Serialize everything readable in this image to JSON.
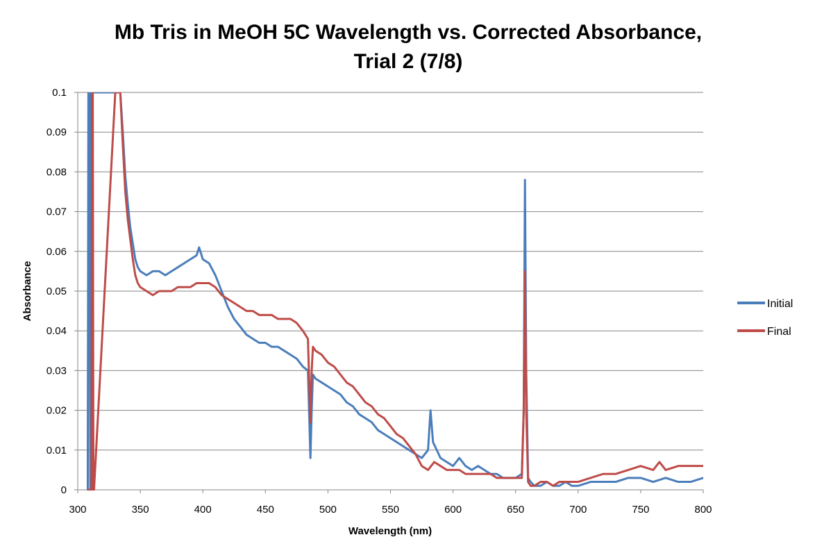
{
  "chart_data": {
    "type": "line",
    "title_lines": [
      "Mb Tris in MeOH 5C Wavelength vs. Corrected Absorbance,",
      "Trial 2 (7/8)"
    ],
    "xlabel": "Wavelength (nm)",
    "ylabel": "Absorbance",
    "xlim": [
      300,
      800
    ],
    "ylim": [
      0,
      0.1
    ],
    "x_ticks": [
      300,
      350,
      400,
      450,
      500,
      550,
      600,
      650,
      700,
      750,
      800
    ],
    "x_tick_labels": [
      "300",
      "350",
      "400",
      "450",
      "500",
      "550",
      "600",
      "650",
      "700",
      "750",
      "800"
    ],
    "y_ticks": [
      0,
      0.01,
      0.02,
      0.03,
      0.04,
      0.05,
      0.06,
      0.07,
      0.08,
      0.09,
      0.1
    ],
    "y_tick_labels": [
      "0",
      "0.01",
      "0.02",
      "0.03",
      "0.04",
      "0.05",
      "0.06",
      "0.07",
      "0.08",
      "0.09",
      "0.1"
    ],
    "grid": true,
    "legend_position": "right",
    "series": [
      {
        "name": "Initial",
        "color": "#4a7ebb",
        "x": [
          308,
          308.5,
          309,
          309.5,
          310,
          310.5,
          311,
          311.5,
          312,
          312.5,
          313,
          330,
          334,
          336,
          338,
          340,
          342,
          344,
          346,
          348,
          350,
          355,
          360,
          365,
          370,
          375,
          380,
          385,
          390,
          395,
          397,
          400,
          405,
          410,
          415,
          420,
          425,
          430,
          435,
          440,
          445,
          450,
          455,
          460,
          465,
          470,
          475,
          480,
          484,
          486,
          487,
          488,
          490,
          495,
          500,
          505,
          510,
          515,
          520,
          525,
          530,
          535,
          540,
          545,
          550,
          555,
          560,
          565,
          570,
          575,
          580,
          582,
          584,
          590,
          595,
          600,
          605,
          610,
          615,
          620,
          625,
          630,
          635,
          640,
          645,
          650,
          655,
          656.5,
          657.5,
          658.5,
          660,
          662,
          665,
          670,
          675,
          680,
          685,
          690,
          695,
          700,
          710,
          720,
          730,
          740,
          750,
          760,
          770,
          780,
          790,
          800
        ],
        "y": [
          0,
          0.1,
          0.1,
          0.1,
          0,
          0,
          0.1,
          0.1,
          0.1,
          0.1,
          0.1,
          0.1,
          0.1,
          0.09,
          0.079,
          0.072,
          0.066,
          0.062,
          0.058,
          0.056,
          0.055,
          0.054,
          0.055,
          0.055,
          0.054,
          0.055,
          0.056,
          0.057,
          0.058,
          0.059,
          0.061,
          0.058,
          0.057,
          0.054,
          0.05,
          0.046,
          0.043,
          0.041,
          0.039,
          0.038,
          0.037,
          0.037,
          0.036,
          0.036,
          0.035,
          0.034,
          0.033,
          0.031,
          0.03,
          0.008,
          0.02,
          0.029,
          0.028,
          0.027,
          0.026,
          0.025,
          0.024,
          0.022,
          0.021,
          0.019,
          0.018,
          0.017,
          0.015,
          0.014,
          0.013,
          0.012,
          0.011,
          0.01,
          0.009,
          0.008,
          0.01,
          0.02,
          0.012,
          0.008,
          0.007,
          0.006,
          0.008,
          0.006,
          0.005,
          0.006,
          0.005,
          0.004,
          0.004,
          0.003,
          0.003,
          0.003,
          0.004,
          0.02,
          0.078,
          0.03,
          0.003,
          0.002,
          0.001,
          0.001,
          0.002,
          0.001,
          0.001,
          0.002,
          0.001,
          0.001,
          0.002,
          0.002,
          0.002,
          0.003,
          0.003,
          0.002,
          0.003,
          0.002,
          0.002,
          0.003
        ]
      },
      {
        "name": "Final",
        "color": "#be4b48",
        "x": [
          309,
          309.5,
          310,
          311,
          311.5,
          312,
          312.5,
          313,
          330,
          334,
          336,
          338,
          340,
          342,
          344,
          346,
          348,
          350,
          355,
          360,
          365,
          370,
          375,
          380,
          385,
          390,
          395,
          400,
          405,
          410,
          415,
          420,
          425,
          430,
          435,
          440,
          445,
          450,
          455,
          460,
          465,
          470,
          475,
          480,
          484,
          486,
          487,
          488,
          490,
          495,
          500,
          505,
          510,
          515,
          520,
          525,
          530,
          535,
          540,
          545,
          550,
          555,
          560,
          565,
          570,
          575,
          580,
          585,
          590,
          595,
          600,
          605,
          610,
          615,
          620,
          625,
          630,
          635,
          640,
          645,
          650,
          655,
          656.5,
          657.5,
          658.5,
          660,
          662,
          665,
          670,
          675,
          680,
          685,
          690,
          695,
          700,
          710,
          720,
          730,
          740,
          750,
          760,
          765,
          770,
          780,
          790,
          800
        ],
        "y": [
          0,
          0,
          0,
          0,
          0.1,
          0.1,
          0,
          0,
          0.1,
          0.1,
          0.087,
          0.075,
          0.068,
          0.063,
          0.058,
          0.054,
          0.052,
          0.051,
          0.05,
          0.049,
          0.05,
          0.05,
          0.05,
          0.051,
          0.051,
          0.051,
          0.052,
          0.052,
          0.052,
          0.051,
          0.049,
          0.048,
          0.047,
          0.046,
          0.045,
          0.045,
          0.044,
          0.044,
          0.044,
          0.043,
          0.043,
          0.043,
          0.042,
          0.04,
          0.038,
          0.017,
          0.03,
          0.036,
          0.035,
          0.034,
          0.032,
          0.031,
          0.029,
          0.027,
          0.026,
          0.024,
          0.022,
          0.021,
          0.019,
          0.018,
          0.016,
          0.014,
          0.013,
          0.011,
          0.009,
          0.006,
          0.005,
          0.007,
          0.006,
          0.005,
          0.005,
          0.005,
          0.004,
          0.004,
          0.004,
          0.004,
          0.004,
          0.003,
          0.003,
          0.003,
          0.003,
          0.003,
          0.02,
          0.055,
          0.02,
          0.002,
          0.001,
          0.001,
          0.002,
          0.002,
          0.001,
          0.002,
          0.002,
          0.002,
          0.002,
          0.003,
          0.004,
          0.004,
          0.005,
          0.006,
          0.005,
          0.007,
          0.005,
          0.006,
          0.006,
          0.006
        ]
      }
    ]
  }
}
